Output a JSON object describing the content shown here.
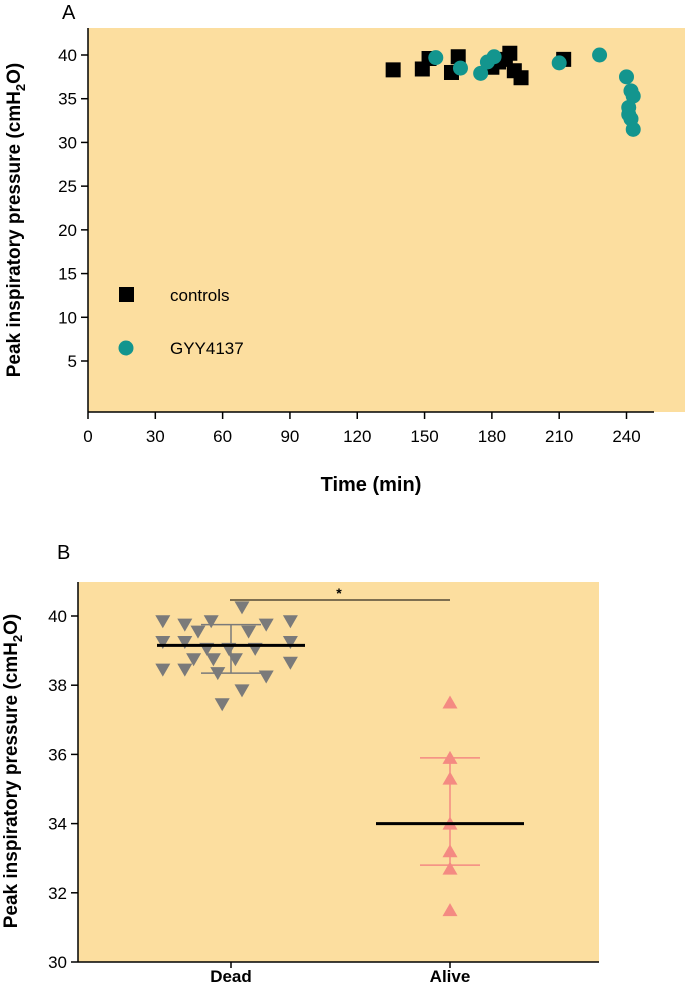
{
  "colors": {
    "panel_bg": "#FCDE9F",
    "controls": "#000000",
    "gyy4137": "#13958E",
    "dead": "#7A7A7A",
    "alive": "#F48A82",
    "stat_bar": "#000000"
  },
  "chart_data": [
    {
      "type": "scatter",
      "panel_label": "A",
      "xlabel": "Time (min)",
      "ylabel_main": "Peak inspiratory pressure (cmH",
      "ylabel_sub": "2",
      "ylabel_end": "O)",
      "xlim": [
        0,
        250
      ],
      "ylim": [
        5,
        42
      ],
      "xticks": [
        0,
        30,
        60,
        90,
        120,
        150,
        180,
        210,
        240
      ],
      "yticks": [
        5,
        10,
        15,
        20,
        25,
        30,
        35,
        40
      ],
      "legend": {
        "placement": "left",
        "entries": [
          "controls",
          "GYY4137"
        ]
      },
      "series": [
        {
          "name": "controls",
          "marker": "square",
          "points": [
            [
              136,
              38.3
            ],
            [
              149,
              38.4
            ],
            [
              152,
              39.6
            ],
            [
              162,
              38.0
            ],
            [
              165,
              39.8
            ],
            [
              180,
              38.6
            ],
            [
              183,
              39.2
            ],
            [
              186,
              39.5
            ],
            [
              188,
              40.2
            ],
            [
              190,
              38.2
            ],
            [
              193,
              37.4
            ],
            [
              212,
              39.5
            ]
          ]
        },
        {
          "name": "GYY4137",
          "marker": "circle",
          "points": [
            [
              155,
              39.7
            ],
            [
              166,
              38.5
            ],
            [
              175,
              37.9
            ],
            [
              178,
              39.2
            ],
            [
              181,
              39.8
            ],
            [
              210,
              39.1
            ],
            [
              228,
              40.0
            ],
            [
              240,
              37.5
            ],
            [
              241,
              33.2
            ],
            [
              241,
              34.0
            ],
            [
              242,
              35.9
            ],
            [
              242,
              32.7
            ],
            [
              243,
              35.3
            ],
            [
              243,
              31.5
            ]
          ]
        }
      ]
    },
    {
      "type": "scatter",
      "panel_label": "B",
      "ylabel_main": "Peak inspiratory pressure (cmH",
      "ylabel_sub": "2",
      "ylabel_end": "O)",
      "categories": [
        "Dead",
        "Alive"
      ],
      "ylim": [
        30,
        41
      ],
      "yticks": [
        30,
        32,
        34,
        36,
        38,
        40
      ],
      "significance": "*",
      "series": [
        {
          "name": "Dead",
          "marker": "triangle-down",
          "mean": 39.15,
          "error_low": 38.35,
          "error_high": 39.75,
          "points": [
            [
              -0.62,
              39.85
            ],
            [
              -0.62,
              39.25
            ],
            [
              -0.62,
              38.45
            ],
            [
              -0.42,
              39.75
            ],
            [
              -0.42,
              39.25
            ],
            [
              -0.42,
              38.45
            ],
            [
              -0.34,
              38.75
            ],
            [
              -0.3,
              39.55
            ],
            [
              -0.22,
              39.05
            ],
            [
              -0.18,
              39.85
            ],
            [
              -0.16,
              38.75
            ],
            [
              -0.12,
              38.35
            ],
            [
              -0.08,
              37.45
            ],
            [
              -0.02,
              39.05
            ],
            [
              0.04,
              38.75
            ],
            [
              0.1,
              40.25
            ],
            [
              0.1,
              37.85
            ],
            [
              0.16,
              39.55
            ],
            [
              0.22,
              39.05
            ],
            [
              0.32,
              39.75
            ],
            [
              0.32,
              38.25
            ],
            [
              0.54,
              39.25
            ],
            [
              0.54,
              39.85
            ],
            [
              0.54,
              38.65
            ]
          ]
        },
        {
          "name": "Alive",
          "marker": "triangle-up",
          "mean": 34.0,
          "error_low": 32.8,
          "error_high": 35.9,
          "points": [
            [
              0,
              37.5
            ],
            [
              0,
              35.9
            ],
            [
              0,
              35.3
            ],
            [
              0,
              34.0
            ],
            [
              0,
              33.2
            ],
            [
              0,
              32.7
            ],
            [
              0,
              31.5
            ]
          ]
        }
      ]
    }
  ]
}
